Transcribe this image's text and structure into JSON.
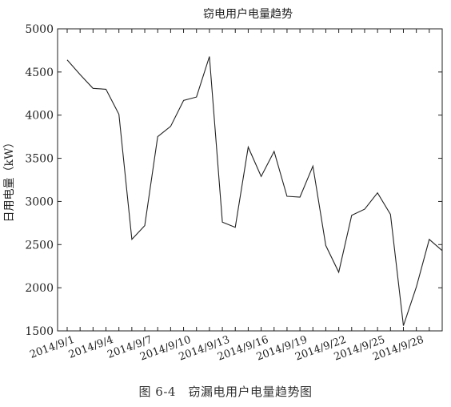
{
  "chart_data": {
    "type": "line",
    "title": "窃电用户电量趋势",
    "xlabel": "",
    "ylabel": "日用电量（kW）",
    "ylim": [
      1500,
      5000
    ],
    "yticks": [
      1500,
      2000,
      2500,
      3000,
      3500,
      4000,
      4500,
      5000
    ],
    "x": [
      "2014/9/1",
      "2014/9/2",
      "2014/9/3",
      "2014/9/4",
      "2014/9/5",
      "2014/9/6",
      "2014/9/7",
      "2014/9/8",
      "2014/9/9",
      "2014/9/10",
      "2014/9/11",
      "2014/9/12",
      "2014/9/13",
      "2014/9/14",
      "2014/9/15",
      "2014/9/16",
      "2014/9/17",
      "2014/9/18",
      "2014/9/19",
      "2014/9/20",
      "2014/9/21",
      "2014/9/22",
      "2014/9/23",
      "2014/9/24",
      "2014/9/25",
      "2014/9/26",
      "2014/9/27",
      "2014/9/28",
      "2014/9/29",
      "2014/9/30"
    ],
    "xtick_labels": [
      "2014/9/1",
      "2014/9/4",
      "2014/9/7",
      "2014/9/10",
      "2014/9/13",
      "2014/9/16",
      "2014/9/19",
      "2014/9/22",
      "2014/9/25",
      "2014/9/28"
    ],
    "series": [
      {
        "values": [
          4640,
          4470,
          4310,
          4300,
          4010,
          2560,
          2720,
          3750,
          3870,
          4170,
          4210,
          4680,
          2760,
          2700,
          3630,
          3290,
          3580,
          3060,
          3050,
          3410,
          2490,
          2180,
          2840,
          2910,
          3100,
          2850,
          1560,
          2010,
          2560,
          2430
        ],
        "color": "#222222"
      }
    ],
    "grid": false
  },
  "caption": "图 6-4　窃漏电用户电量趋势图"
}
